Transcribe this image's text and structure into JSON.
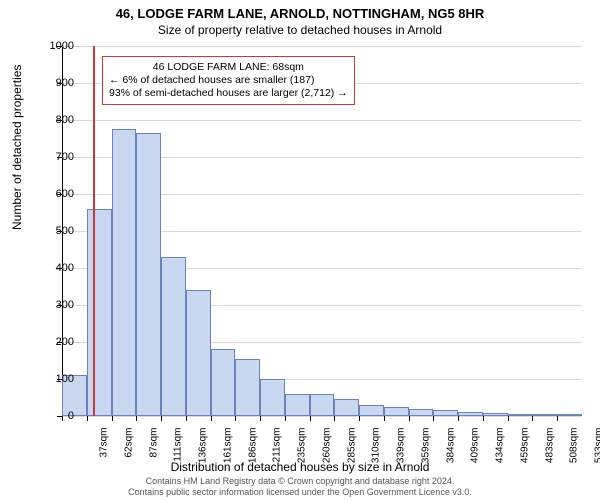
{
  "title_main": "46, LODGE FARM LANE, ARNOLD, NOTTINGHAM, NG5 8HR",
  "title_sub": "Size of property relative to detached houses in Arnold",
  "y_axis_label": "Number of detached properties",
  "x_axis_label": "Distribution of detached houses by size in Arnold",
  "footer_line1": "Contains HM Land Registry data © Crown copyright and database right 2024.",
  "footer_line2": "Contains public sector information licensed under the Open Government Licence v3.0.",
  "chart": {
    "type": "histogram",
    "ylim": [
      0,
      1000
    ],
    "ytick_step": 100,
    "ytick_labels": [
      "0",
      "100",
      "200",
      "300",
      "400",
      "500",
      "600",
      "700",
      "800",
      "900",
      "1000"
    ],
    "x_tick_labels": [
      "37sqm",
      "62sqm",
      "87sqm",
      "111sqm",
      "136sqm",
      "161sqm",
      "186sqm",
      "211sqm",
      "235sqm",
      "260sqm",
      "285sqm",
      "310sqm",
      "339sqm",
      "359sqm",
      "384sqm",
      "409sqm",
      "434sqm",
      "459sqm",
      "483sqm",
      "508sqm",
      "533sqm"
    ],
    "bar_values": [
      110,
      560,
      775,
      765,
      430,
      340,
      180,
      155,
      100,
      60,
      60,
      45,
      30,
      25,
      20,
      15,
      10,
      8,
      6,
      5,
      4
    ],
    "reference_line_bin_index": 1,
    "bar_fill": "#cad7f0",
    "bar_stroke": "#6a84c0",
    "grid_color": "#d9d9d9",
    "reference_line_color": "#c63a3a",
    "background": "#ffffff",
    "title_fontsize": 13,
    "subtitle_fontsize": 12,
    "axis_label_fontsize": 12,
    "tick_fontsize": 11
  },
  "annotation": {
    "line1": "46 LODGE FARM LANE: 68sqm",
    "line2": "← 6% of detached houses are smaller (187)",
    "line3": "93% of semi-detached houses are larger (2,712) →"
  }
}
